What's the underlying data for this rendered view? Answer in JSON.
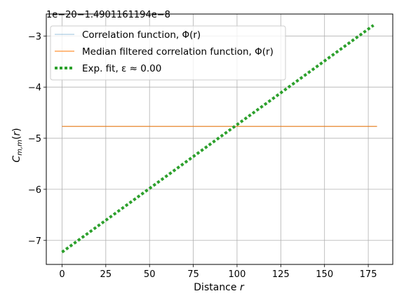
{
  "chart_data": {
    "type": "line",
    "offset_text": "1e−20−1.4901161194e−8",
    "xlabel": "Distance r",
    "ylabel": "C m,m (r)",
    "xlim": [
      -9,
      189
    ],
    "ylim": [
      -7.47,
      -2.57
    ],
    "x_ticks": [
      0,
      25,
      50,
      75,
      100,
      125,
      150,
      175
    ],
    "y_ticks": [
      -7,
      -6,
      -5,
      -4,
      -3
    ],
    "x_tick_labels": [
      "0",
      "25",
      "50",
      "75",
      "100",
      "125",
      "150",
      "175"
    ],
    "y_tick_labels": [
      "−7",
      "−6",
      "−5",
      "−4",
      "−3"
    ],
    "grid": true,
    "legend_position": "upper-left",
    "series": [
      {
        "name": "Correlation function, Φ(r)",
        "color": "#1f77b4",
        "style": "solid-faint",
        "x": [
          0,
          180
        ],
        "y": [
          -4.77,
          -4.77
        ]
      },
      {
        "name": "Median filtered correlation function, Φ(r)",
        "color": "#ff7f0e",
        "style": "solid",
        "x": [
          0,
          180
        ],
        "y": [
          -4.77,
          -4.77
        ]
      },
      {
        "name": "Exp. fit, ε ≈ 0.00",
        "color": "#2ca02c",
        "style": "dotted",
        "x": [
          0,
          178
        ],
        "y": [
          -7.23,
          -2.79
        ]
      }
    ]
  }
}
